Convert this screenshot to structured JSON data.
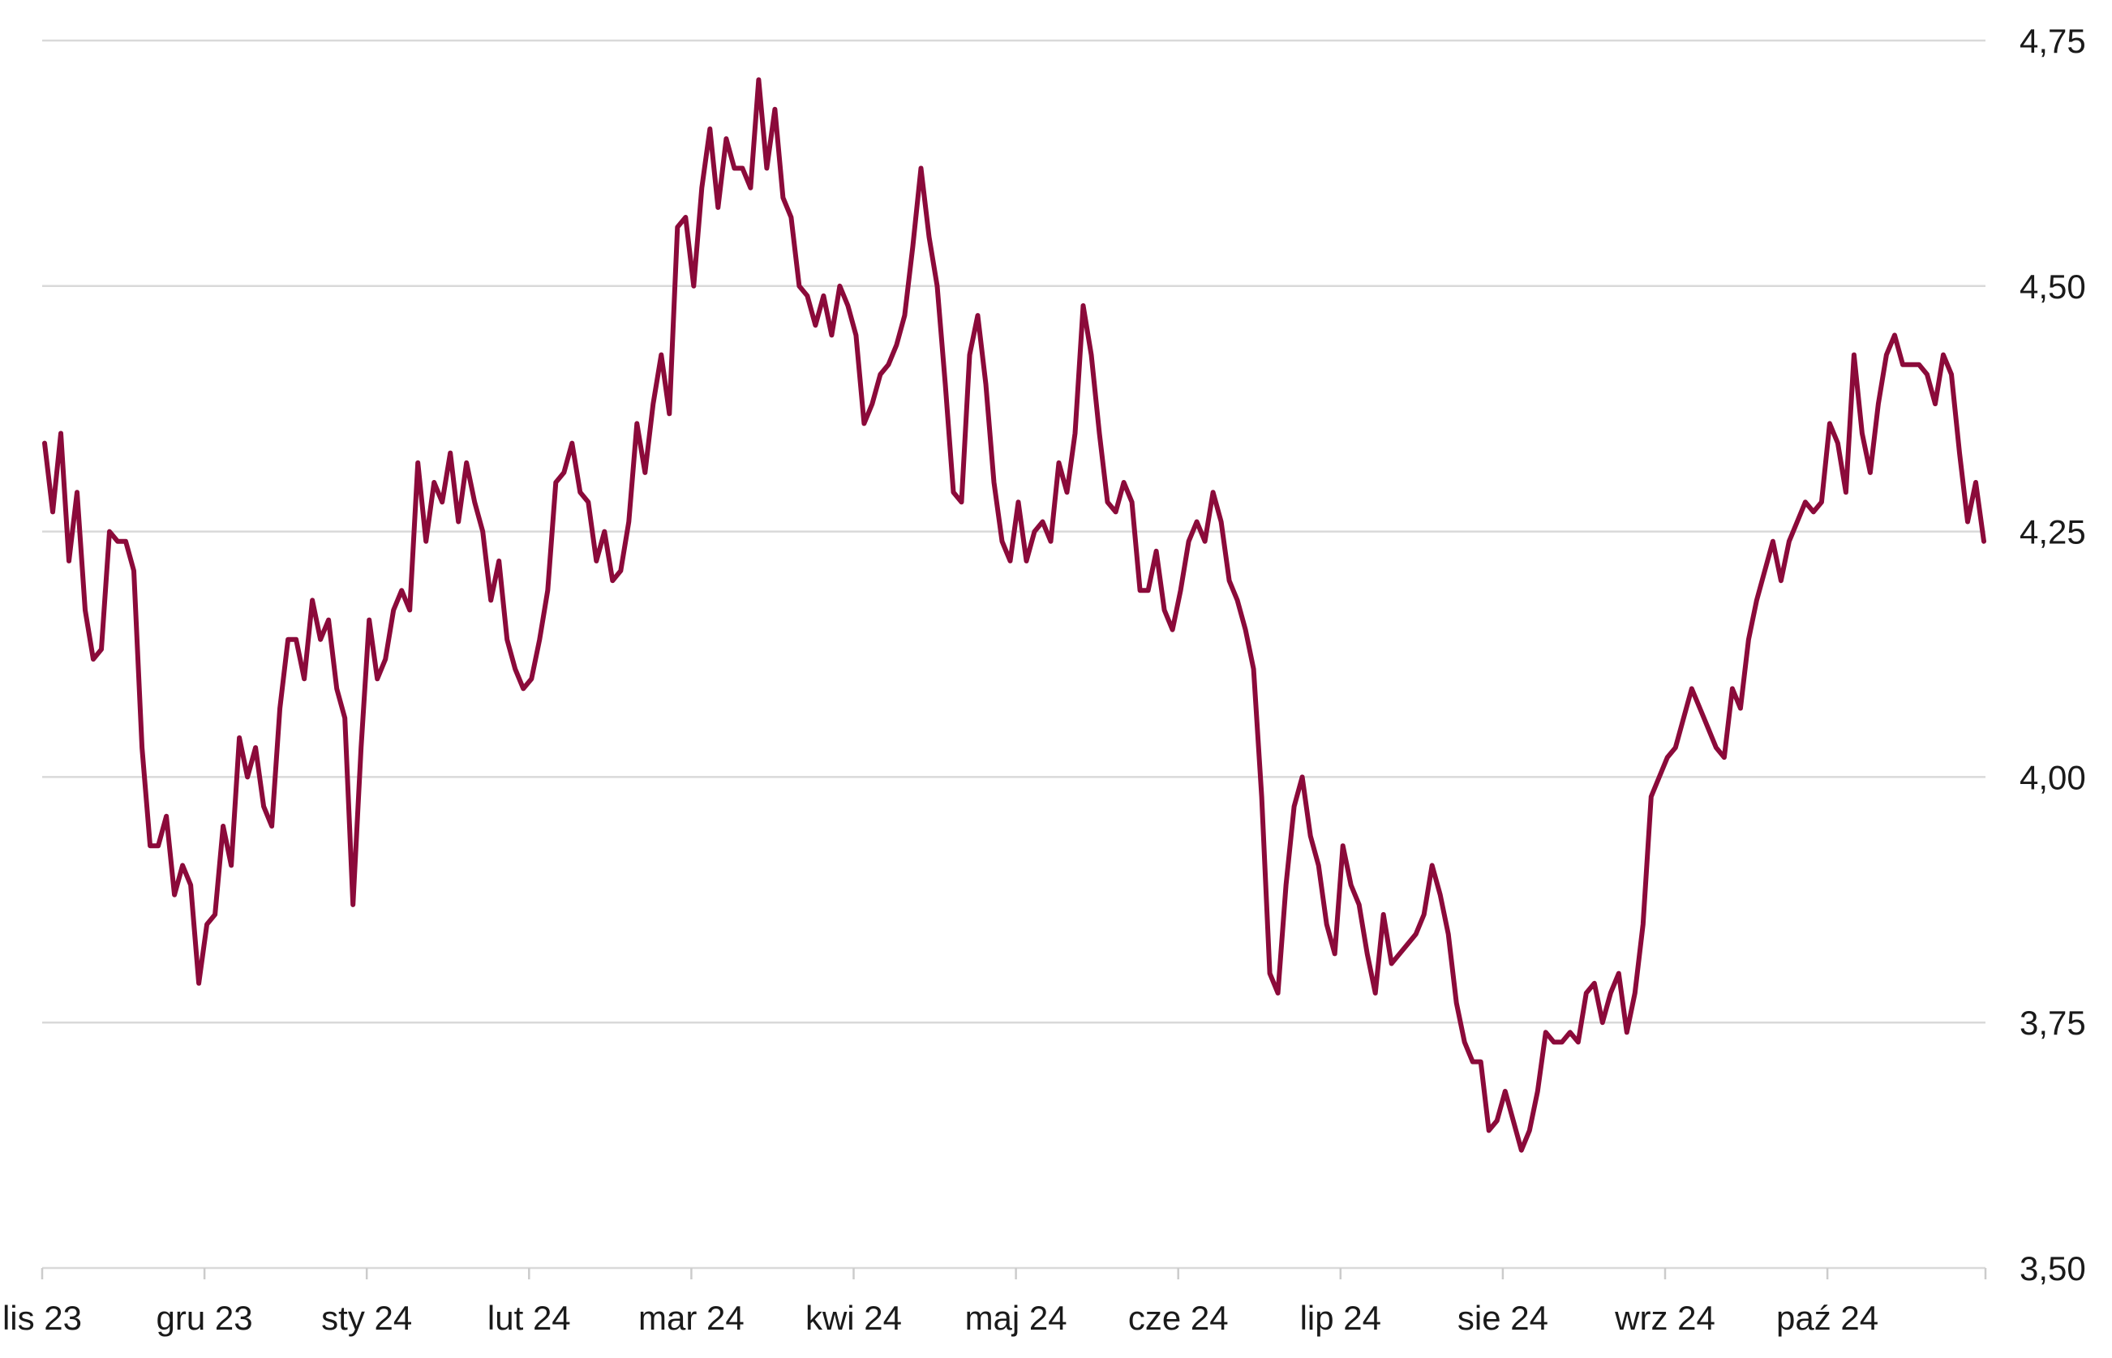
{
  "chart_data": {
    "type": "line",
    "title": "",
    "xlabel": "",
    "ylabel": "",
    "ylim": [
      3.5,
      4.75
    ],
    "y_ticks": [
      "3,50",
      "3,75",
      "4,00",
      "4,25",
      "4,50",
      "4,75"
    ],
    "y_tick_values": [
      3.5,
      3.75,
      4.0,
      4.25,
      4.5,
      4.75
    ],
    "y_axis_position": "right",
    "grid": "horizontal",
    "x_tick_labels": [
      "lis 23",
      "gru 23",
      "sty 24",
      "lut 24",
      "mar 24",
      "kwi 24",
      "maj 24",
      "cze 24",
      "lip 24",
      "sie 24",
      "wrz 24",
      "paź 24"
    ],
    "line_color": "#8b0a3a",
    "grid_color": "#d9d9d9",
    "series": [
      {
        "values": [
          4.34,
          4.27,
          4.35,
          4.22,
          4.29,
          4.17,
          4.12,
          4.13,
          4.25,
          4.24,
          4.24,
          4.21,
          4.03,
          3.93,
          3.93,
          3.96,
          3.88,
          3.91,
          3.89,
          3.79,
          3.85,
          3.86,
          3.95,
          3.91,
          4.04,
          4.0,
          4.03,
          3.97,
          3.95,
          4.07,
          4.14,
          4.14,
          4.1,
          4.18,
          4.14,
          4.16,
          4.09,
          4.06,
          3.87,
          4.03,
          4.16,
          4.1,
          4.12,
          4.17,
          4.19,
          4.17,
          4.32,
          4.24,
          4.3,
          4.28,
          4.33,
          4.26,
          4.32,
          4.28,
          4.25,
          4.18,
          4.22,
          4.14,
          4.11,
          4.09,
          4.1,
          4.14,
          4.19,
          4.3,
          4.31,
          4.34,
          4.29,
          4.28,
          4.22,
          4.25,
          4.2,
          4.21,
          4.26,
          4.36,
          4.31,
          4.38,
          4.43,
          4.37,
          4.56,
          4.57,
          4.5,
          4.6,
          4.66,
          4.58,
          4.65,
          4.62,
          4.62,
          4.6,
          4.71,
          4.62,
          4.68,
          4.59,
          4.57,
          4.5,
          4.49,
          4.46,
          4.49,
          4.45,
          4.5,
          4.48,
          4.45,
          4.36,
          4.38,
          4.41,
          4.42,
          4.44,
          4.47,
          4.54,
          4.62,
          4.55,
          4.5,
          4.4,
          4.29,
          4.28,
          4.43,
          4.47,
          4.4,
          4.3,
          4.24,
          4.22,
          4.28,
          4.22,
          4.25,
          4.26,
          4.24,
          4.32,
          4.29,
          4.35,
          4.48,
          4.43,
          4.35,
          4.28,
          4.27,
          4.3,
          4.28,
          4.19,
          4.19,
          4.23,
          4.17,
          4.15,
          4.19,
          4.24,
          4.26,
          4.24,
          4.29,
          4.26,
          4.2,
          4.18,
          4.15,
          4.11,
          3.98,
          3.8,
          3.78,
          3.89,
          3.97,
          4.0,
          3.94,
          3.91,
          3.85,
          3.82,
          3.93,
          3.89,
          3.87,
          3.82,
          3.78,
          3.86,
          3.81,
          3.82,
          3.83,
          3.84,
          3.86,
          3.91,
          3.88,
          3.84,
          3.77,
          3.73,
          3.71,
          3.71,
          3.64,
          3.65,
          3.68,
          3.65,
          3.62,
          3.64,
          3.68,
          3.74,
          3.73,
          3.73,
          3.74,
          3.73,
          3.78,
          3.79,
          3.75,
          3.78,
          3.8,
          3.74,
          3.78,
          3.85,
          3.98,
          4.0,
          4.02,
          4.03,
          4.06,
          4.09,
          4.07,
          4.05,
          4.03,
          4.02,
          4.09,
          4.07,
          4.14,
          4.18,
          4.21,
          4.24,
          4.2,
          4.24,
          4.26,
          4.28,
          4.27,
          4.28,
          4.36,
          4.34,
          4.29,
          4.43,
          4.35,
          4.31,
          4.38,
          4.43,
          4.45,
          4.42,
          4.42,
          4.42,
          4.41,
          4.38,
          4.43,
          4.41,
          4.33,
          4.26,
          4.3,
          4.24
        ]
      }
    ]
  }
}
